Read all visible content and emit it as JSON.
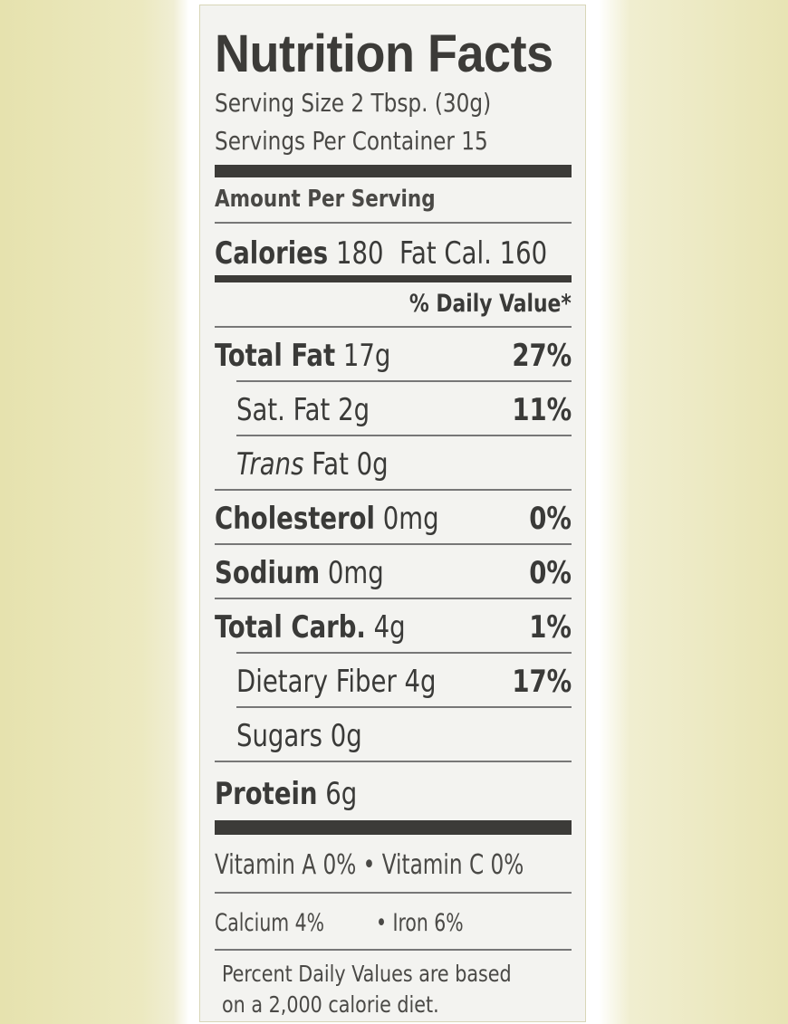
{
  "title": "Nutrition Facts",
  "serving_size": "Serving Size 2 Tbsp. (30g)",
  "servings_per_container": "Servings Per Container 15",
  "amount_per_serving": "Amount Per Serving",
  "calories_label": "Calories",
  "calories_value": "180",
  "fat_cal": "Fat Cal. 160",
  "daily_value_header": "% Daily Value*",
  "nutrients": [
    {
      "name": "Total Fat",
      "amount": "17g",
      "dv": "27%"
    },
    {
      "name": "Sat. Fat",
      "amount": "2g",
      "dv": "11%"
    },
    {
      "name": "Trans",
      "amount": "Fat 0g",
      "dv": ""
    },
    {
      "name": "Cholesterol",
      "amount": "0mg",
      "dv": "0%"
    },
    {
      "name": "Sodium",
      "amount": "0mg",
      "dv": "0%"
    },
    {
      "name": "Total Carb.",
      "amount": "4g",
      "dv": "1%"
    },
    {
      "name": "Dietary Fiber",
      "amount": "4g",
      "dv": "17%"
    },
    {
      "name": "Sugars",
      "amount": "0g",
      "dv": ""
    },
    {
      "name": "Protein",
      "amount": "6g",
      "dv": ""
    }
  ],
  "vitamins_line": "Vitamin A 0% • Vitamin C 0%",
  "calcium": "Calcium 4%",
  "iron": "• Iron 6%",
  "footnote_line1": "Percent Daily Values are based",
  "footnote_line2": "on a 2,000 calorie diet."
}
